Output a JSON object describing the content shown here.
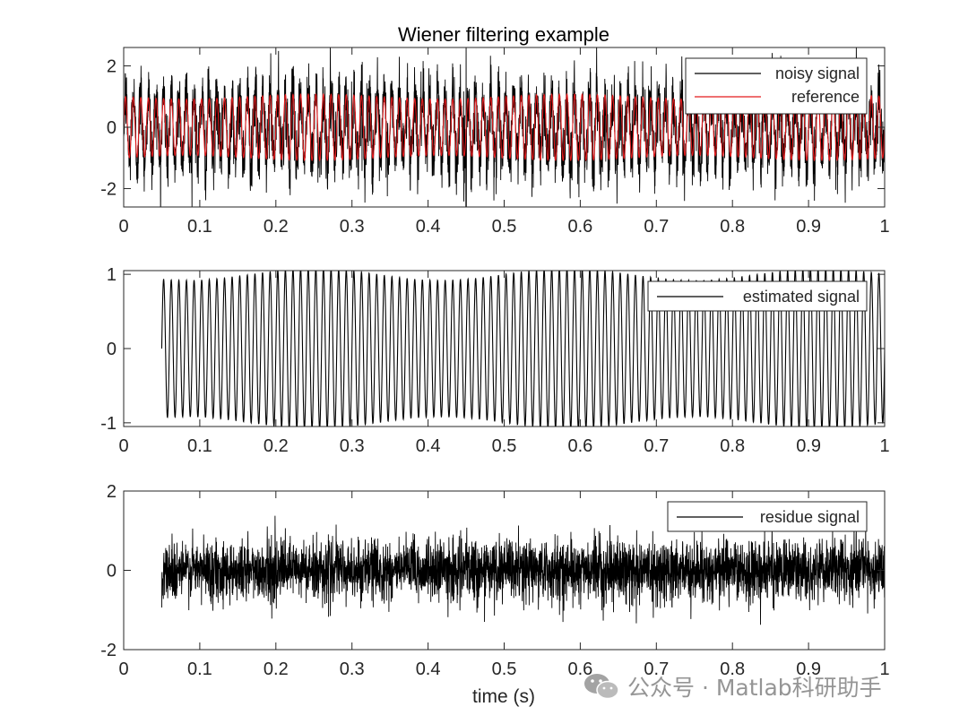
{
  "chart_data": {
    "title": "Wiener filtering example",
    "xlabel": "time (s)",
    "x_ticks": [
      "0",
      "0.1",
      "0.2",
      "0.3",
      "0.4",
      "0.5",
      "0.6",
      "0.7",
      "0.8",
      "0.9",
      "1"
    ],
    "xlim": [
      0,
      1
    ],
    "grid": false,
    "subplots": [
      {
        "type": "line",
        "ylim": [
          -2.6,
          2.6
        ],
        "y_ticks": [
          -2,
          0,
          2
        ],
        "legend_position": "top-right",
        "series": [
          {
            "name": "noisy signal",
            "color": "#000000",
            "frequency_hz": 100,
            "amplitude": 1,
            "noise_std": 0.6,
            "x_start": 0,
            "x_end": 1,
            "spike_at": 0.45
          },
          {
            "name": "reference",
            "color": "#e31a1c",
            "frequency_hz": 100,
            "amplitude": 1,
            "x_start": 0,
            "x_end": 1
          }
        ]
      },
      {
        "type": "line",
        "ylim": [
          -1.05,
          1.05
        ],
        "y_ticks": [
          -1,
          0,
          1
        ],
        "legend_position": "top-right",
        "series": [
          {
            "name": "estimated signal",
            "color": "#000000",
            "frequency_hz": 100,
            "amplitude": 1,
            "x_start": 0.05,
            "x_end": 1
          }
        ]
      },
      {
        "type": "line",
        "ylim": [
          -2,
          2
        ],
        "y_ticks": [
          -2,
          0,
          2
        ],
        "legend_position": "top-right",
        "series": [
          {
            "name": "residue signal",
            "color": "#000000",
            "noise_std": 0.38,
            "x_start": 0.05,
            "x_end": 1
          }
        ]
      }
    ]
  },
  "watermark": {
    "text": "公众号 · Matlab科研助手",
    "icon": "wechat-logo-icon"
  }
}
